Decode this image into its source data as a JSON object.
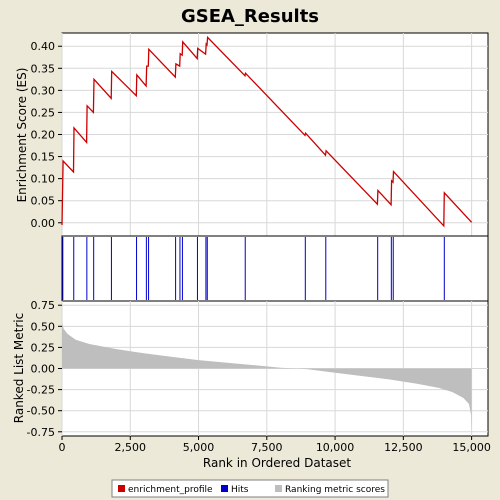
{
  "chart_data": {
    "type": "line",
    "title": "GSEA_Results",
    "xlabel": "Rank in Ordered Dataset",
    "ylabel_top": "Enrichment Score (ES)",
    "ylabel_bottom": "Ranked List Metric",
    "xlim": [
      0,
      15600
    ],
    "xticks": [
      0,
      2500,
      5000,
      7500,
      10000,
      12500,
      15000
    ],
    "xtick_labels": [
      "0",
      "2,500",
      "5,000",
      "7,500",
      "10,000",
      "12,500",
      "15,000"
    ],
    "es_ylim": [
      -0.03,
      0.43
    ],
    "es_yticks": [
      0.0,
      0.05,
      0.1,
      0.15,
      0.2,
      0.25,
      0.3,
      0.35,
      0.4
    ],
    "es_ytick_labels": [
      "0.00",
      "0.05",
      "0.10",
      "0.15",
      "0.20",
      "0.25",
      "0.30",
      "0.35",
      "0.40"
    ],
    "metric_ylim": [
      -0.8,
      0.8
    ],
    "metric_yticks": [
      0.75,
      0.5,
      0.25,
      0.0,
      -0.25,
      -0.5,
      -0.75
    ],
    "metric_ytick_labels": [
      "0.75",
      "0.50",
      "0.25",
      "0.00",
      "-0.25",
      "-0.50",
      "-0.75"
    ],
    "grid": true,
    "enrichment_profile": {
      "name": "enrichment_profile",
      "color": "#cc0000",
      "points": [
        [
          0,
          -0.005
        ],
        [
          40,
          0.14
        ],
        [
          420,
          0.115
        ],
        [
          440,
          0.215
        ],
        [
          900,
          0.182
        ],
        [
          920,
          0.265
        ],
        [
          1150,
          0.25
        ],
        [
          1170,
          0.325
        ],
        [
          1800,
          0.282
        ],
        [
          1820,
          0.343
        ],
        [
          2720,
          0.288
        ],
        [
          2740,
          0.335
        ],
        [
          3080,
          0.31
        ],
        [
          3100,
          0.355
        ],
        [
          3160,
          0.355
        ],
        [
          3180,
          0.393
        ],
        [
          4150,
          0.33
        ],
        [
          4170,
          0.36
        ],
        [
          4310,
          0.355
        ],
        [
          4330,
          0.383
        ],
        [
          4400,
          0.38
        ],
        [
          4420,
          0.41
        ],
        [
          4950,
          0.372
        ],
        [
          4970,
          0.395
        ],
        [
          5260,
          0.382
        ],
        [
          5280,
          0.405
        ],
        [
          5310,
          0.403
        ],
        [
          5330,
          0.42
        ],
        [
          6700,
          0.333
        ],
        [
          6720,
          0.339
        ],
        [
          8900,
          0.198
        ],
        [
          8920,
          0.203
        ],
        [
          9650,
          0.153
        ],
        [
          9670,
          0.163
        ],
        [
          11550,
          0.042
        ],
        [
          11570,
          0.073
        ],
        [
          12050,
          0.041
        ],
        [
          12070,
          0.095
        ],
        [
          12120,
          0.092
        ],
        [
          12140,
          0.116
        ],
        [
          13980,
          -0.007
        ],
        [
          14000,
          0.068
        ],
        [
          15000,
          0.001
        ]
      ]
    },
    "hits": [
      30,
      430,
      910,
      1160,
      1810,
      2730,
      3090,
      3170,
      4160,
      4320,
      4410,
      4960,
      5270,
      5320,
      6710,
      8910,
      9660,
      11560,
      12060,
      12130,
      14000
    ],
    "metric_curve": [
      [
        0,
        0.55
      ],
      [
        60,
        0.47
      ],
      [
        200,
        0.41
      ],
      [
        500,
        0.34
      ],
      [
        1000,
        0.29
      ],
      [
        2000,
        0.23
      ],
      [
        3000,
        0.18
      ],
      [
        4000,
        0.14
      ],
      [
        5000,
        0.1
      ],
      [
        6000,
        0.07
      ],
      [
        7000,
        0.04
      ],
      [
        8000,
        0.01
      ],
      [
        8600,
        0.0
      ],
      [
        9000,
        -0.01
      ],
      [
        10000,
        -0.05
      ],
      [
        11000,
        -0.09
      ],
      [
        12000,
        -0.13
      ],
      [
        13000,
        -0.18
      ],
      [
        13800,
        -0.23
      ],
      [
        14300,
        -0.28
      ],
      [
        14700,
        -0.35
      ],
      [
        14900,
        -0.42
      ],
      [
        14980,
        -0.55
      ],
      [
        15000,
        -0.76
      ]
    ],
    "legend": [
      {
        "label": "enrichment_profile",
        "color": "#cc0000"
      },
      {
        "label": "Hits",
        "color": "#0000cc"
      },
      {
        "label": "Ranking metric scores",
        "color": "#bebebe"
      }
    ],
    "legend_position": "bottom"
  }
}
